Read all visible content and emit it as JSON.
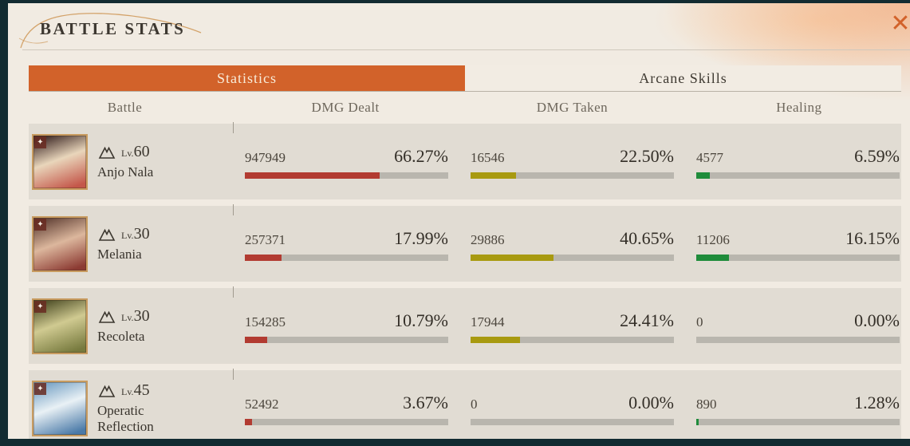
{
  "header": {
    "title": "BATTLE STATS",
    "close": "✕"
  },
  "tabs": {
    "statistics": "Statistics",
    "arcane": "Arcane Skills"
  },
  "columns": {
    "battle": "Battle",
    "dealt": "DMG Dealt",
    "taken": "DMG Taken",
    "healing": "Healing"
  },
  "labels": {
    "level_prefix": "Lv."
  },
  "colors": {
    "accent": "#d2622a",
    "dealt": "#b23b31",
    "taken": "#a89a10",
    "healing": "#1f8c3b"
  },
  "rows": [
    {
      "name": "Anjo Nala",
      "level": "60",
      "dealt": {
        "value": "947949",
        "pct": "66.27%",
        "pct_num": 66.27
      },
      "taken": {
        "value": "16546",
        "pct": "22.50%",
        "pct_num": 22.5
      },
      "healing": {
        "value": "4577",
        "pct": "6.59%",
        "pct_num": 6.59
      }
    },
    {
      "name": "Melania",
      "level": "30",
      "dealt": {
        "value": "257371",
        "pct": "17.99%",
        "pct_num": 17.99
      },
      "taken": {
        "value": "29886",
        "pct": "40.65%",
        "pct_num": 40.65
      },
      "healing": {
        "value": "11206",
        "pct": "16.15%",
        "pct_num": 16.15
      }
    },
    {
      "name": "Recoleta",
      "level": "30",
      "dealt": {
        "value": "154285",
        "pct": "10.79%",
        "pct_num": 10.79
      },
      "taken": {
        "value": "17944",
        "pct": "24.41%",
        "pct_num": 24.41
      },
      "healing": {
        "value": "0",
        "pct": "0.00%",
        "pct_num": 0
      }
    },
    {
      "name": "Operatic Reflection",
      "level": "45",
      "dealt": {
        "value": "52492",
        "pct": "3.67%",
        "pct_num": 3.67
      },
      "taken": {
        "value": "0",
        "pct": "0.00%",
        "pct_num": 0
      },
      "healing": {
        "value": "890",
        "pct": "1.28%",
        "pct_num": 1.28
      }
    }
  ]
}
